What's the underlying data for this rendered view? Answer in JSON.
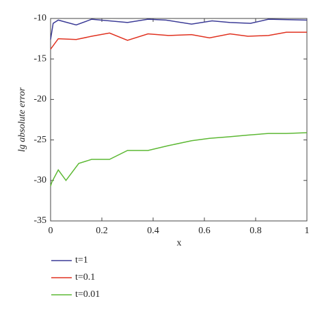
{
  "chart_data": {
    "type": "line",
    "xlabel": "x",
    "ylabel": "lg absolute error",
    "xlim": [
      0,
      1
    ],
    "xticks": [
      0,
      0.2,
      0.4,
      0.6,
      0.8,
      1
    ],
    "ylim": [
      -35,
      -10
    ],
    "yticks": [
      -35,
      -30,
      -25,
      -20,
      -15,
      -10
    ],
    "series": [
      {
        "name": "t=1",
        "color": "#3a3a96",
        "x": [
          0,
          0.01,
          0.03,
          0.1,
          0.16,
          0.3,
          0.38,
          0.45,
          0.55,
          0.63,
          0.7,
          0.78,
          0.85,
          1
        ],
        "values": [
          -12.6,
          -10.6,
          -10.2,
          -10.8,
          -10.1,
          -10.5,
          -10.1,
          -10.2,
          -10.7,
          -10.3,
          -10.5,
          -10.6,
          -10.1,
          -10.2
        ]
      },
      {
        "name": "t=0.1",
        "color": "#e0301e",
        "x": [
          0,
          0.03,
          0.1,
          0.16,
          0.23,
          0.3,
          0.38,
          0.46,
          0.55,
          0.62,
          0.7,
          0.77,
          0.85,
          0.92,
          1
        ],
        "values": [
          -13.8,
          -12.5,
          -12.6,
          -12.2,
          -11.8,
          -12.7,
          -11.9,
          -12.1,
          -12.0,
          -12.4,
          -11.9,
          -12.2,
          -12.1,
          -11.7,
          -11.7
        ]
      },
      {
        "name": "t=0.01",
        "color": "#5cb833",
        "x": [
          0,
          0.005,
          0.03,
          0.06,
          0.11,
          0.16,
          0.23,
          0.3,
          0.38,
          0.46,
          0.55,
          0.62,
          0.7,
          0.77,
          0.85,
          0.92,
          1
        ],
        "values": [
          -30.7,
          -30.2,
          -28.7,
          -30.0,
          -27.9,
          -27.4,
          -27.4,
          -26.3,
          -26.3,
          -25.7,
          -25.1,
          -24.8,
          -24.6,
          -24.4,
          -24.2,
          -24.2,
          -24.1
        ]
      }
    ]
  }
}
